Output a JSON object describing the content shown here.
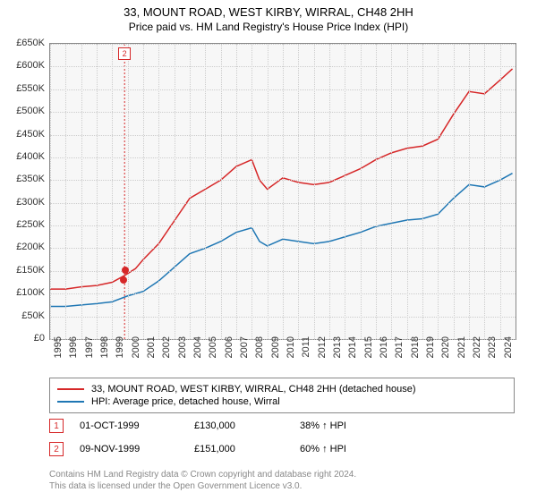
{
  "title": "33, MOUNT ROAD, WEST KIRBY, WIRRAL, CH48 2HH",
  "subtitle": "Price paid vs. HM Land Registry's House Price Index (HPI)",
  "chart": {
    "type": "line",
    "background_color": "#f7f7f7",
    "grid_color": "#cccccc",
    "border_color": "#888888",
    "ylim": [
      0,
      650000
    ],
    "ytick_step": 50000,
    "ytick_labels": [
      "£0",
      "£50K",
      "£100K",
      "£150K",
      "£200K",
      "£250K",
      "£300K",
      "£350K",
      "£400K",
      "£450K",
      "£500K",
      "£550K",
      "£600K",
      "£650K"
    ],
    "xlim": [
      1995,
      2025
    ],
    "xtick_step": 1,
    "xtick_labels": [
      "1995",
      "1996",
      "1997",
      "1998",
      "1999",
      "2000",
      "2001",
      "2002",
      "2003",
      "2004",
      "2005",
      "2006",
      "2007",
      "2008",
      "2009",
      "2010",
      "2011",
      "2012",
      "2013",
      "2014",
      "2015",
      "2016",
      "2017",
      "2018",
      "2019",
      "2020",
      "2021",
      "2022",
      "2023",
      "2024"
    ],
    "series": [
      {
        "name": "33, MOUNT ROAD, WEST KIRBY, WIRRAL, CH48 2HH (detached house)",
        "color": "#d62728",
        "width": 1.5,
        "x": [
          1995,
          1996,
          1997,
          1998,
          1999,
          1999.8,
          2000.5,
          2001,
          2002,
          2003,
          2004,
          2005,
          2006,
          2007,
          2008,
          2008.5,
          2009,
          2010,
          2011,
          2012,
          2013,
          2014,
          2015,
          2016,
          2017,
          2018,
          2019,
          2020,
          2021,
          2022,
          2023,
          2024,
          2024.8
        ],
        "y": [
          110000,
          110000,
          115000,
          118000,
          125000,
          140000,
          155000,
          175000,
          210000,
          260000,
          310000,
          330000,
          350000,
          380000,
          395000,
          350000,
          330000,
          355000,
          345000,
          340000,
          345000,
          360000,
          375000,
          395000,
          410000,
          420000,
          425000,
          440000,
          495000,
          545000,
          540000,
          570000,
          595000
        ]
      },
      {
        "name": "HPI: Average price, detached house, Wirral",
        "color": "#1f77b4",
        "width": 1.5,
        "x": [
          1995,
          1996,
          1997,
          1998,
          1999,
          2000,
          2001,
          2002,
          2003,
          2004,
          2005,
          2006,
          2007,
          2008,
          2008.5,
          2009,
          2010,
          2011,
          2012,
          2013,
          2014,
          2015,
          2016,
          2017,
          2018,
          2019,
          2020,
          2021,
          2022,
          2023,
          2024,
          2024.8
        ],
        "y": [
          72000,
          72000,
          75000,
          78000,
          82000,
          95000,
          105000,
          128000,
          158000,
          188000,
          200000,
          215000,
          235000,
          245000,
          215000,
          205000,
          220000,
          215000,
          210000,
          215000,
          225000,
          235000,
          248000,
          255000,
          262000,
          265000,
          275000,
          310000,
          340000,
          335000,
          350000,
          365000
        ]
      }
    ],
    "sale_markers": [
      {
        "label": "1",
        "x": 1999.75,
        "y": 130000,
        "color": "#d62728"
      },
      {
        "label": "2",
        "x": 1999.85,
        "y": 151000,
        "color": "#d62728"
      }
    ],
    "vertical_marker": {
      "x": 1999.8,
      "color": "#d62728",
      "dash": true
    }
  },
  "legend": {
    "items": [
      {
        "color": "#d62728",
        "label": "33, MOUNT ROAD, WEST KIRBY, WIRRAL, CH48 2HH (detached house)"
      },
      {
        "color": "#1f77b4",
        "label": "HPI: Average price, detached house, Wirral"
      }
    ]
  },
  "sales_table": [
    {
      "marker": "1",
      "marker_color": "#d62728",
      "date": "01-OCT-1999",
      "price": "£130,000",
      "delta": "38% ↑ HPI"
    },
    {
      "marker": "2",
      "marker_color": "#d62728",
      "date": "09-NOV-1999",
      "price": "£151,000",
      "delta": "60% ↑ HPI"
    }
  ],
  "footnote_line1": "Contains HM Land Registry data © Crown copyright and database right 2024.",
  "footnote_line2": "This data is licensed under the Open Government Licence v3.0."
}
